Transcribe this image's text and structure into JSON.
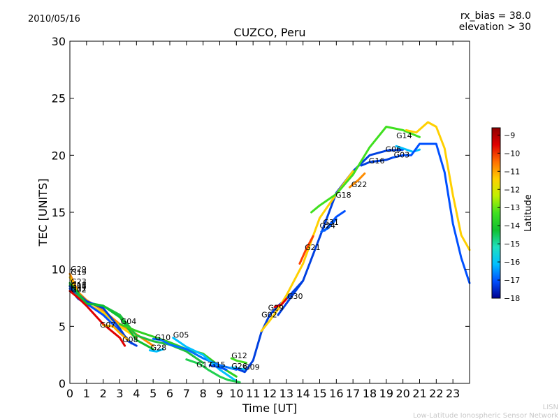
{
  "header": {
    "date": "2010/05/16",
    "rx_bias": "rx_bias = 38.0",
    "elevation": "elevation > 30"
  },
  "footer": {
    "org_short": "LISN",
    "org_full": "Low-Latitude Ionospheric Sensor Network"
  },
  "colorbar": {
    "label": "Latitude",
    "ticks": [
      "−9",
      "−10",
      "−11",
      "−12",
      "−13",
      "−14",
      "−15",
      "−16",
      "−17",
      "−18"
    ],
    "range": [
      -18,
      -8.6
    ],
    "colors": [
      "#00008f",
      "#0050ff",
      "#00c0ff",
      "#20e0c0",
      "#10c030",
      "#40e020",
      "#c0f000",
      "#ffd000",
      "#ff7000",
      "#e00000",
      "#8f0000"
    ]
  },
  "chart_data": {
    "type": "line",
    "title": "CUZCO, Peru",
    "xlabel": "Time [UT]",
    "ylabel": "TEC [UNITS]",
    "xlim": [
      0,
      24
    ],
    "ylim": [
      0,
      30
    ],
    "x_ticks": [
      "0",
      "1",
      "2",
      "3",
      "4",
      "5",
      "6",
      "7",
      "8",
      "9",
      "10",
      "11",
      "12",
      "13",
      "14",
      "15",
      "16",
      "17",
      "18",
      "19",
      "20",
      "21",
      "22",
      "23"
    ],
    "y_ticks": [
      "0",
      "5",
      "10",
      "15",
      "20",
      "25",
      "30"
    ],
    "grid": false,
    "series": [
      {
        "name": "G29",
        "color": "#ff8c00",
        "points": [
          [
            0,
            9.6
          ],
          [
            0.5,
            8.0
          ],
          [
            1,
            7.3
          ],
          [
            2,
            6.4
          ],
          [
            3,
            5.2
          ],
          [
            4,
            4.3
          ],
          [
            5,
            3.3
          ]
        ]
      },
      {
        "name": "G19",
        "color": "#ffd000",
        "points": [
          [
            0,
            9.3
          ],
          [
            0.5,
            7.8
          ],
          [
            1,
            7.0
          ],
          [
            2,
            6.2
          ],
          [
            3,
            5.0
          ],
          [
            4,
            4.0
          ]
        ]
      },
      {
        "name": "G23",
        "color": "#20c040",
        "points": [
          [
            0,
            8.6
          ],
          [
            0.5,
            7.6
          ],
          [
            1,
            7.1
          ],
          [
            2,
            6.8
          ],
          [
            3,
            6.0
          ],
          [
            4,
            4.2
          ],
          [
            5,
            3.7
          ],
          [
            6,
            3.4
          ],
          [
            7,
            2.8
          ],
          [
            8,
            1.8
          ]
        ]
      },
      {
        "name": "G13",
        "color": "#0050ff",
        "points": [
          [
            0,
            8.3
          ],
          [
            0.5,
            7.4
          ],
          [
            1,
            7.0
          ],
          [
            2,
            6.0
          ],
          [
            3,
            4.6
          ],
          [
            3.7,
            3.5
          ]
        ]
      },
      {
        "name": "G08",
        "color": "#0040e0",
        "points": [
          [
            0,
            8.5
          ],
          [
            1,
            7.2
          ],
          [
            2,
            6.6
          ],
          [
            3,
            4.8
          ],
          [
            3.5,
            3.7
          ],
          [
            4,
            3.3
          ]
        ]
      },
      {
        "name": "G11",
        "color": "#10c030",
        "points": [
          [
            0,
            8.8
          ],
          [
            1,
            7.0
          ],
          [
            2,
            6.8
          ],
          [
            3,
            5.8
          ],
          [
            4,
            3.8
          ],
          [
            5,
            3.0
          ]
        ]
      },
      {
        "name": "G02",
        "color": "#e00000",
        "points": [
          [
            0,
            8.1
          ],
          [
            0.5,
            7.5
          ],
          [
            1,
            6.8
          ],
          [
            2,
            5.2
          ],
          [
            3,
            4.0
          ],
          [
            3.3,
            3.3
          ]
        ]
      },
      {
        "name": "G07",
        "color": "#ffb000",
        "points": [
          [
            2,
            5.1
          ],
          [
            2.6,
            5.0
          ],
          [
            3,
            4.4
          ],
          [
            3.5,
            3.8
          ]
        ]
      },
      {
        "name": "G04",
        "color": "#30d020",
        "points": [
          [
            3,
            5.2
          ],
          [
            3.5,
            4.9
          ],
          [
            4,
            4.6
          ],
          [
            5,
            4.1
          ],
          [
            6,
            3.6
          ],
          [
            7,
            3.0
          ],
          [
            8,
            2.6
          ],
          [
            9,
            1.5
          ],
          [
            10,
            0.6
          ]
        ]
      },
      {
        "name": "G28",
        "color": "#00c0ff",
        "points": [
          [
            4.8,
            2.9
          ],
          [
            5.2,
            2.8
          ],
          [
            5.6,
            3.0
          ]
        ]
      },
      {
        "name": "G10",
        "color": "#0070ff",
        "points": [
          [
            5.0,
            3.9
          ],
          [
            5.5,
            3.8
          ],
          [
            6,
            3.4
          ],
          [
            7,
            3.0
          ],
          [
            8,
            2.2
          ],
          [
            9,
            1.6
          ],
          [
            10,
            1.2
          ]
        ]
      },
      {
        "name": "G05",
        "color": "#00c0ff",
        "points": [
          [
            6.2,
            4.0
          ],
          [
            7,
            3.2
          ],
          [
            8,
            2.5
          ],
          [
            9,
            1.2
          ],
          [
            10,
            0.2
          ]
        ]
      },
      {
        "name": "G17",
        "color": "#20d050",
        "points": [
          [
            7,
            2.1
          ],
          [
            7.8,
            1.7
          ],
          [
            8.3,
            1.2
          ],
          [
            9,
            0.6
          ],
          [
            9.5,
            0.3
          ],
          [
            10.2,
            0.1
          ]
        ]
      },
      {
        "name": "G15",
        "color": "#0050ff",
        "points": [
          [
            8.4,
            1.6
          ],
          [
            9,
            1.4
          ],
          [
            9.4,
            1.2
          ]
        ]
      },
      {
        "name": "G12",
        "color": "#40e020",
        "points": [
          [
            9.7,
            2.2
          ],
          [
            10,
            2.0
          ],
          [
            10.6,
            1.8
          ]
        ]
      },
      {
        "name": "G26",
        "color": "#00c0ff",
        "points": [
          [
            9.7,
            1.4
          ],
          [
            10.2,
            1.3
          ],
          [
            10.6,
            1.2
          ]
        ]
      },
      {
        "name": "G09",
        "color": "#0040e0",
        "points": [
          [
            10.0,
            1.3
          ],
          [
            10.5,
            1.0
          ],
          [
            11.0,
            2.0
          ],
          [
            11.5,
            4.5
          ],
          [
            12,
            6.0
          ],
          [
            12.5,
            6.8
          ],
          [
            13,
            7.4
          ],
          [
            14,
            9.0
          ],
          [
            15,
            12.8
          ],
          [
            16,
            16.7
          ],
          [
            17,
            18.6
          ],
          [
            18,
            20.0
          ],
          [
            19,
            20.4
          ],
          [
            20,
            20.5
          ]
        ]
      },
      {
        "name": "G02",
        "color": "#ffd000",
        "points": [
          [
            11.5,
            4.6
          ],
          [
            12,
            5.5
          ],
          [
            12.5,
            6.5
          ],
          [
            13,
            7.7
          ],
          [
            14,
            10.5
          ],
          [
            15,
            14.5
          ],
          [
            16,
            16.6
          ],
          [
            17,
            18.6
          ]
        ]
      },
      {
        "name": "G29",
        "color": "#e00000",
        "points": [
          [
            12.3,
            6.7
          ],
          [
            12.7,
            6.9
          ],
          [
            13.0,
            7.4
          ]
        ]
      },
      {
        "name": "G30",
        "color": "#0040e0",
        "points": [
          [
            12.5,
            6.0
          ],
          [
            13,
            7.0
          ],
          [
            13.6,
            8.2
          ],
          [
            14,
            9.0
          ]
        ]
      },
      {
        "name": "G21",
        "color": "#ff4000",
        "points": [
          [
            13.8,
            10.5
          ],
          [
            14.2,
            11.8
          ],
          [
            14.6,
            12.9
          ]
        ]
      },
      {
        "name": "G31",
        "color": "#0050ff",
        "points": [
          [
            15.3,
            13.4
          ],
          [
            16,
            14.6
          ],
          [
            16.5,
            15.1
          ]
        ]
      },
      {
        "name": "G24",
        "color": "#0060ff",
        "points": [
          [
            15.1,
            13.3
          ],
          [
            15.5,
            13.6
          ],
          [
            16,
            14.4
          ]
        ]
      },
      {
        "name": "G18",
        "color": "#40e020",
        "points": [
          [
            14.5,
            15.0
          ],
          [
            15,
            15.6
          ],
          [
            16,
            16.6
          ],
          [
            17,
            18.3
          ],
          [
            18,
            20.7
          ],
          [
            19,
            22.5
          ],
          [
            20,
            22.2
          ],
          [
            21,
            21.6
          ]
        ]
      },
      {
        "name": "G22",
        "color": "#ff8c00",
        "points": [
          [
            16.8,
            17.2
          ],
          [
            17.3,
            17.8
          ],
          [
            17.7,
            18.4
          ]
        ]
      },
      {
        "name": "G16",
        "color": "#0040e0",
        "points": [
          [
            17.5,
            19.1
          ],
          [
            18,
            19.4
          ],
          [
            18.5,
            19.5
          ],
          [
            19,
            19.6
          ],
          [
            19.4,
            19.8
          ]
        ]
      },
      {
        "name": "G06",
        "color": "#00c0ff",
        "points": [
          [
            19.6,
            20.8
          ],
          [
            20,
            20.6
          ],
          [
            20.6,
            20.3
          ],
          [
            21,
            20.5
          ]
        ]
      },
      {
        "name": "G03",
        "color": "#0050ff",
        "points": [
          [
            19.4,
            19.8
          ],
          [
            20,
            20.0
          ],
          [
            20.5,
            20.0
          ],
          [
            21,
            21.0
          ],
          [
            22,
            21.0
          ],
          [
            22.5,
            18.5
          ],
          [
            23,
            14.0
          ],
          [
            23.5,
            11.0
          ],
          [
            24,
            8.8
          ]
        ]
      },
      {
        "name": "G14",
        "color": "#ffd000",
        "points": [
          [
            20.2,
            22.2
          ],
          [
            20.8,
            22.0
          ],
          [
            21.5,
            22.9
          ],
          [
            22,
            22.5
          ],
          [
            22.5,
            20.6
          ],
          [
            23,
            16.5
          ],
          [
            23.5,
            13.0
          ],
          [
            24,
            11.7
          ]
        ]
      }
    ],
    "labels": [
      {
        "text": "G29",
        "x": 0.05,
        "y": 9.8
      },
      {
        "text": "G19",
        "x": 0.05,
        "y": 9.5
      },
      {
        "text": "G23",
        "x": 0.05,
        "y": 8.7
      },
      {
        "text": "G13",
        "x": 0.05,
        "y": 8.4
      },
      {
        "text": "G08",
        "x": 0.05,
        "y": 8.3
      },
      {
        "text": "G11",
        "x": 0.05,
        "y": 8.1
      },
      {
        "text": "G02",
        "x": 0.05,
        "y": 8.0
      },
      {
        "text": "G07",
        "x": 1.8,
        "y": 4.9
      },
      {
        "text": "G04",
        "x": 3.05,
        "y": 5.2
      },
      {
        "text": "G08",
        "x": 3.15,
        "y": 3.6
      },
      {
        "text": "G28",
        "x": 4.85,
        "y": 2.9
      },
      {
        "text": "G10",
        "x": 5.1,
        "y": 3.8
      },
      {
        "text": "G05",
        "x": 6.2,
        "y": 4.0
      },
      {
        "text": "G17",
        "x": 7.6,
        "y": 1.4
      },
      {
        "text": "G15",
        "x": 8.4,
        "y": 1.4
      },
      {
        "text": "G12",
        "x": 9.7,
        "y": 2.2
      },
      {
        "text": "G26",
        "x": 9.7,
        "y": 1.3
      },
      {
        "text": "G09",
        "x": 10.45,
        "y": 1.2
      },
      {
        "text": "G02",
        "x": 11.5,
        "y": 5.8
      },
      {
        "text": "G29",
        "x": 11.9,
        "y": 6.4
      },
      {
        "text": "G30",
        "x": 13.05,
        "y": 7.4
      },
      {
        "text": "G21",
        "x": 14.1,
        "y": 11.7
      },
      {
        "text": "G31",
        "x": 15.2,
        "y": 13.9
      },
      {
        "text": "G24",
        "x": 15.0,
        "y": 13.6
      },
      {
        "text": "G18",
        "x": 15.95,
        "y": 16.3
      },
      {
        "text": "G22",
        "x": 16.9,
        "y": 17.2
      },
      {
        "text": "G16",
        "x": 17.95,
        "y": 19.3
      },
      {
        "text": "G06",
        "x": 18.95,
        "y": 20.3
      },
      {
        "text": "G03",
        "x": 19.45,
        "y": 19.8
      },
      {
        "text": "G14",
        "x": 19.6,
        "y": 21.5
      }
    ]
  }
}
